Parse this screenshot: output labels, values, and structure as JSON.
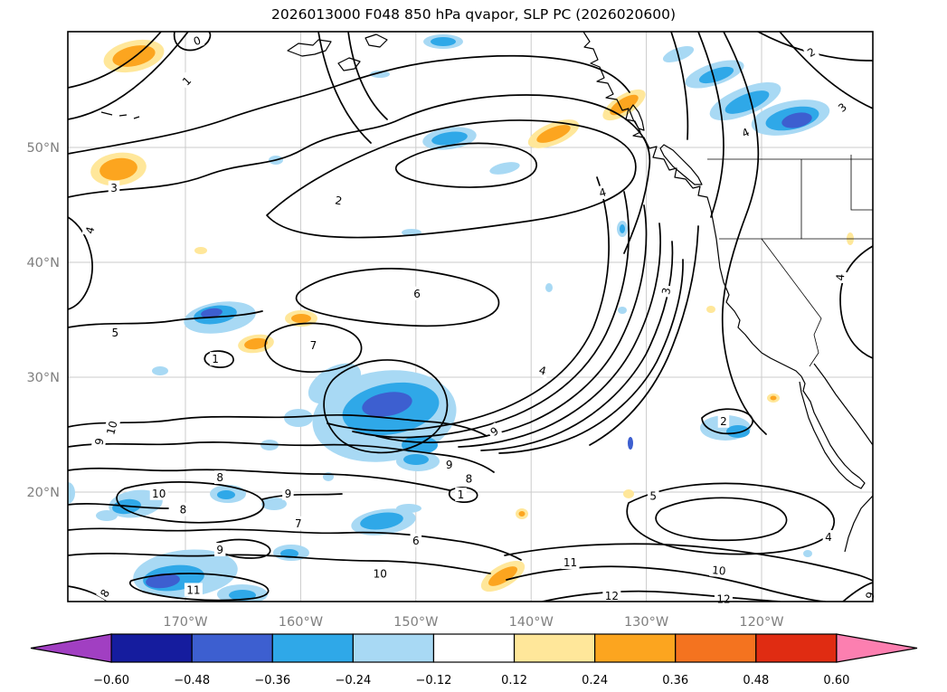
{
  "figure": {
    "title": "2026013000 F048 850 hPa qvapor, SLP PC (2026020600)"
  },
  "chart_data": {
    "type": "heatmap",
    "subtype": "filled-contour weather map (contours + shaded anomalies over North Pacific / western North America)",
    "title": "2026013000 F048 850 hPa qvapor, SLP PC (2026020600)",
    "contour_field": "850 hPa qvapor",
    "shaded_field": "SLP PC",
    "grid": true,
    "map_extent": {
      "lon_min": -180.2,
      "lon_max": -110.3,
      "lat_min": 10.5,
      "lat_max": 60.1
    },
    "x_ticks": [
      {
        "label": "170°W",
        "lon": -170
      },
      {
        "label": "160°W",
        "lon": -160
      },
      {
        "label": "150°W",
        "lon": -150
      },
      {
        "label": "140°W",
        "lon": -140
      },
      {
        "label": "130°W",
        "lon": -130
      },
      {
        "label": "120°W",
        "lon": -120
      }
    ],
    "y_ticks": [
      {
        "label": "50°N",
        "lat": 50
      },
      {
        "label": "40°N",
        "lat": 40
      },
      {
        "label": "30°N",
        "lat": 30
      },
      {
        "label": "20°N",
        "lat": 20
      }
    ],
    "contour_levels_labeled": [
      0,
      1,
      2,
      3,
      4,
      5,
      6,
      7,
      8,
      9,
      10,
      11,
      12
    ],
    "contour_labels": [
      {
        "v": "0",
        "lon": -169.0,
        "lat": 59.3,
        "rot": -20
      },
      {
        "v": "1",
        "lon": -169.9,
        "lat": 55.8,
        "rot": -45
      },
      {
        "v": "3",
        "lon": -176.2,
        "lat": 46.5,
        "rot": 0
      },
      {
        "v": "4",
        "lon": -178.3,
        "lat": 42.8,
        "rot": -75
      },
      {
        "v": "2",
        "lon": -156.7,
        "lat": 45.4,
        "rot": 10
      },
      {
        "v": "2",
        "lon": -115.7,
        "lat": 58.3,
        "rot": -30
      },
      {
        "v": "3",
        "lon": -113.0,
        "lat": 53.5,
        "rot": -40
      },
      {
        "v": "4",
        "lon": -121.4,
        "lat": 51.3,
        "rot": -25
      },
      {
        "v": "4",
        "lon": -133.8,
        "lat": 46.1,
        "rot": -15
      },
      {
        "v": "6",
        "lon": -149.9,
        "lat": 37.3,
        "rot": 0
      },
      {
        "v": "5",
        "lon": -176.1,
        "lat": 33.9,
        "rot": 0
      },
      {
        "v": "7",
        "lon": -158.9,
        "lat": 32.8,
        "rot": 0
      },
      {
        "v": "1",
        "lon": -167.4,
        "lat": 31.6,
        "rot": 0
      },
      {
        "v": "4",
        "lon": -139.0,
        "lat": 30.6,
        "rot": 15
      },
      {
        "v": "3",
        "lon": -128.3,
        "lat": 37.5,
        "rot": -80
      },
      {
        "v": "4",
        "lon": -113.2,
        "lat": 38.7,
        "rot": -85
      },
      {
        "v": "9",
        "lon": -143.2,
        "lat": 25.3,
        "rot": -35
      },
      {
        "v": "9",
        "lon": -147.1,
        "lat": 22.4,
        "rot": 0
      },
      {
        "v": "8",
        "lon": -145.4,
        "lat": 21.2,
        "rot": 0
      },
      {
        "v": "1",
        "lon": -146.1,
        "lat": 19.8,
        "rot": 0
      },
      {
        "v": "5",
        "lon": -129.4,
        "lat": 19.7,
        "rot": 0
      },
      {
        "v": "2",
        "lon": -123.3,
        "lat": 26.2,
        "rot": 0
      },
      {
        "v": "9",
        "lon": -177.5,
        "lat": 24.4,
        "rot": -80
      },
      {
        "v": "10",
        "lon": -176.4,
        "lat": 25.6,
        "rot": -75
      },
      {
        "v": "10",
        "lon": -172.3,
        "lat": 19.9,
        "rot": 0
      },
      {
        "v": "8",
        "lon": -170.2,
        "lat": 18.5,
        "rot": 0
      },
      {
        "v": "8",
        "lon": -167.0,
        "lat": 21.3,
        "rot": 0
      },
      {
        "v": "9",
        "lon": -161.1,
        "lat": 19.9,
        "rot": 0
      },
      {
        "v": "9",
        "lon": -167.0,
        "lat": 15.0,
        "rot": 0
      },
      {
        "v": "11",
        "lon": -169.3,
        "lat": 11.5,
        "rot": 0
      },
      {
        "v": "8",
        "lon": -177.0,
        "lat": 11.2,
        "rot": -60
      },
      {
        "v": "7",
        "lon": -160.2,
        "lat": 17.3,
        "rot": 0
      },
      {
        "v": "6",
        "lon": -150.0,
        "lat": 15.8,
        "rot": 0
      },
      {
        "v": "10",
        "lon": -153.1,
        "lat": 12.9,
        "rot": 0
      },
      {
        "v": "11",
        "lon": -136.6,
        "lat": 13.9,
        "rot": 0
      },
      {
        "v": "12",
        "lon": -133.0,
        "lat": 11.0,
        "rot": 0
      },
      {
        "v": "10",
        "lon": -123.7,
        "lat": 13.2,
        "rot": 5
      },
      {
        "v": "12",
        "lon": -123.3,
        "lat": 10.7,
        "rot": 0
      },
      {
        "v": "4",
        "lon": -114.2,
        "lat": 16.1,
        "rot": 0
      },
      {
        "v": "9",
        "lon": -110.6,
        "lat": 11.0,
        "rot": -70
      }
    ],
    "colorbar": {
      "orientation": "horizontal",
      "boundaries": [
        -0.6,
        -0.48,
        -0.36,
        -0.24,
        -0.12,
        0.12,
        0.24,
        0.36,
        0.48,
        0.6
      ],
      "tick_labels": [
        "−0.60",
        "−0.48",
        "−0.36",
        "−0.24",
        "−0.12",
        "0.12",
        "0.24",
        "0.36",
        "0.48",
        "0.60"
      ],
      "under_color": "#a13fc2",
      "segment_colors": [
        "#151c9e",
        "#3d5fd0",
        "#2fa8e8",
        "#a8d9f4",
        "#ffffff",
        "#ffe79a",
        "#fca51f",
        "#f4731f",
        "#e02c12"
      ],
      "over_color": "#fc7fb0"
    },
    "palette": {
      "shade_light_blue": "#a8d9f4",
      "shade_mid_blue": "#2fa8e8",
      "shade_dark_blue": "#3d5fd0",
      "shade_pale_yellow": "#ffe79a",
      "shade_orange": "#fca51f"
    },
    "tick_label_color": "#7f7f7f"
  }
}
